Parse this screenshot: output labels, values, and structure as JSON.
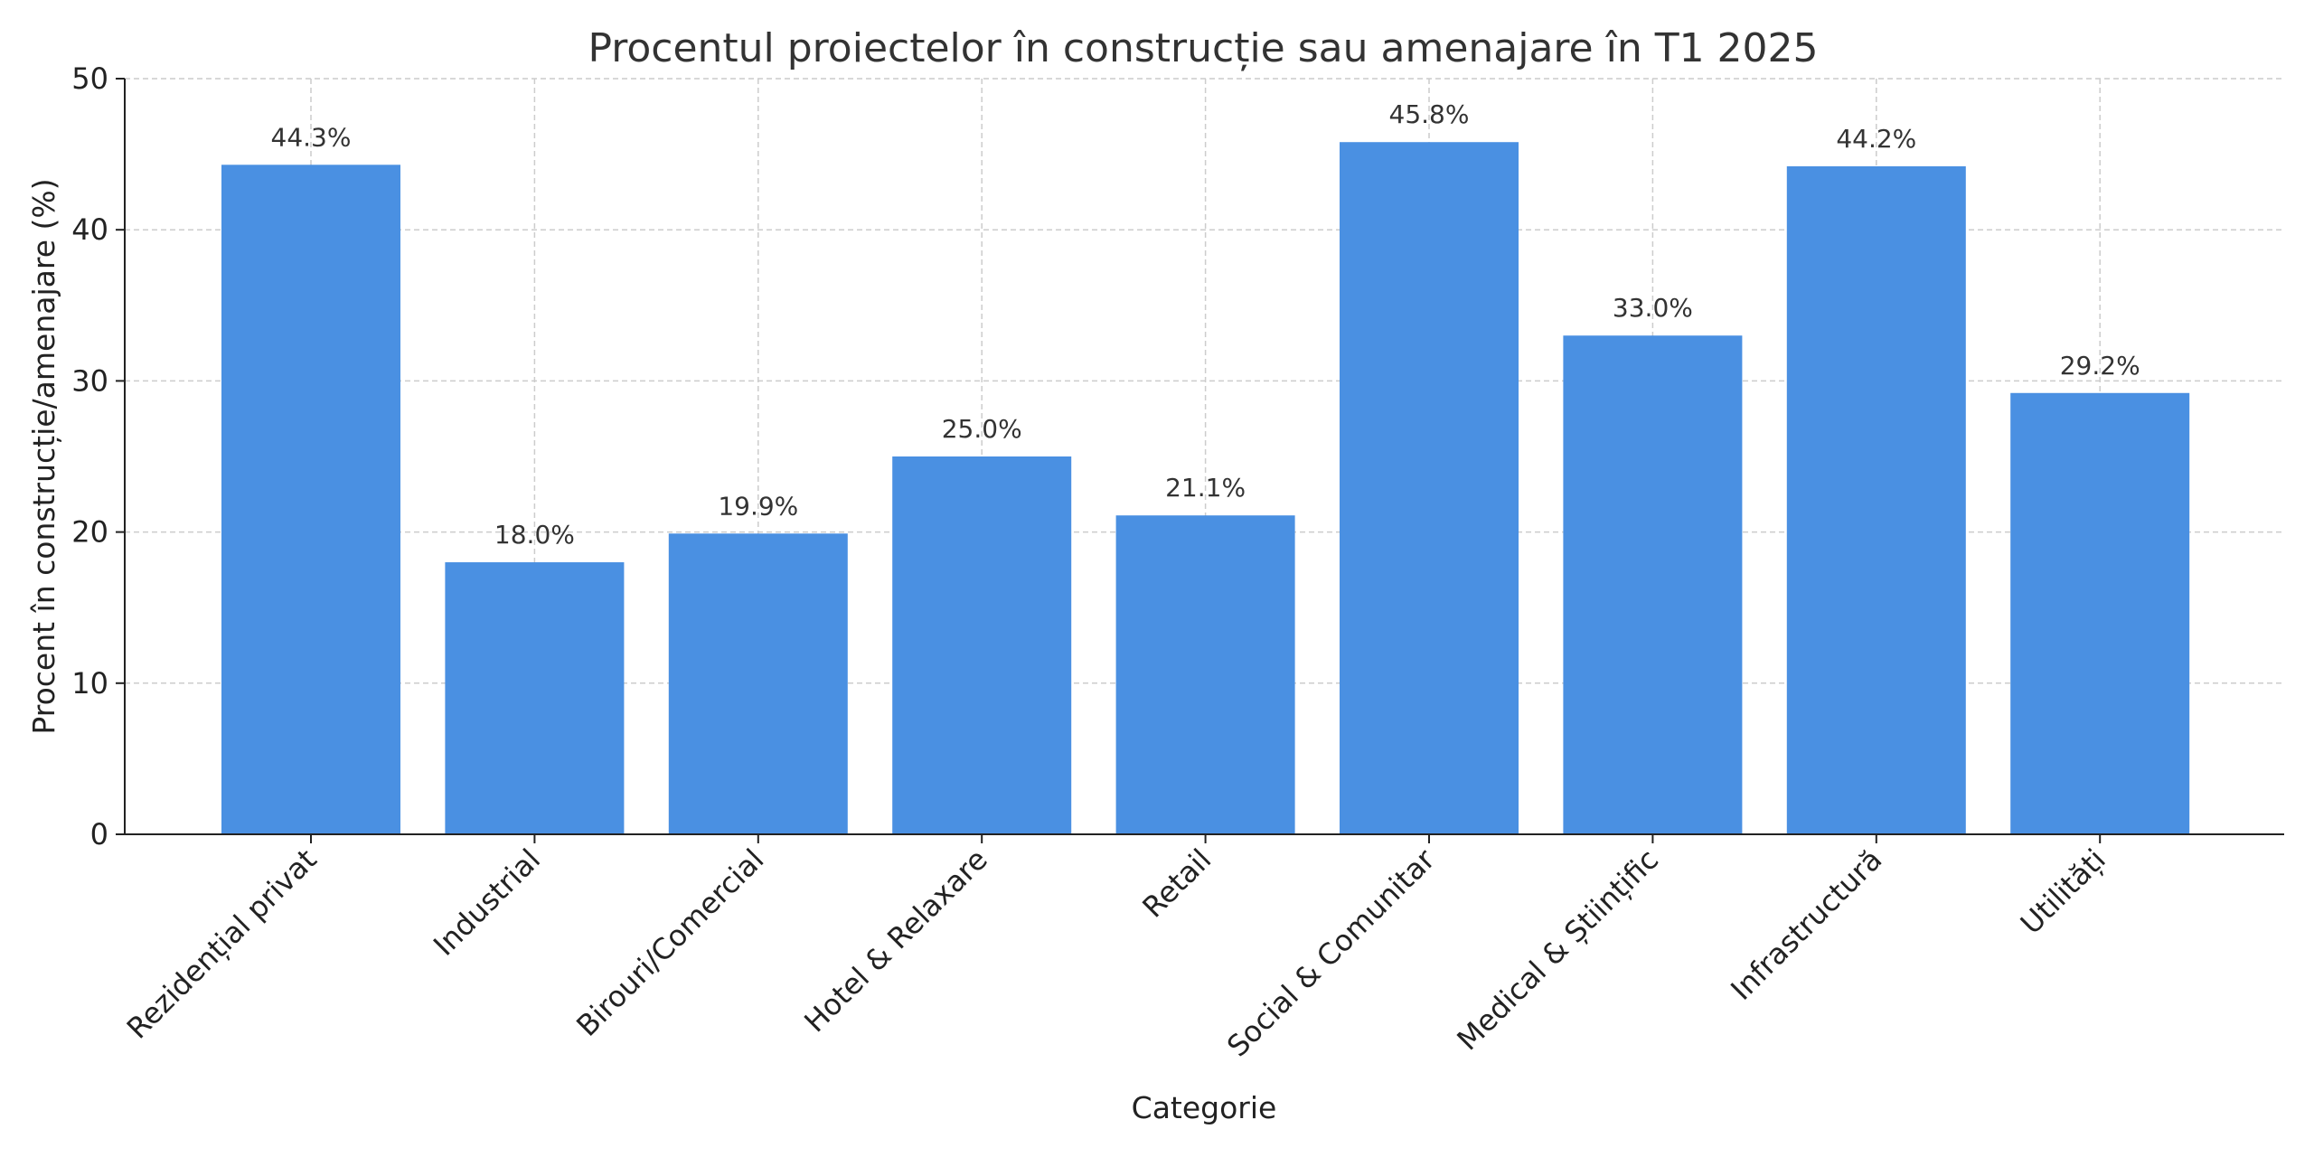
{
  "chart_data": {
    "type": "bar",
    "title": "Procentul proiectelor în construcție sau amenajare în T1 2025",
    "xlabel": "Categorie",
    "ylabel": "Procent în construcție/amenajare (%)",
    "ylim": [
      0,
      50
    ],
    "yticks": [
      0,
      10,
      20,
      30,
      40,
      50
    ],
    "grid": true,
    "bar_color": "#4a90e2",
    "categories": [
      "Rezidențial privat",
      "Industrial",
      "Birouri/Comercial",
      "Hotel & Relaxare",
      "Retail",
      "Social & Comunitar",
      "Medical & Științific",
      "Infrastructură",
      "Utilități"
    ],
    "values": [
      44.3,
      18.0,
      19.9,
      25.0,
      21.1,
      45.8,
      33.0,
      44.2,
      29.2
    ],
    "data_labels": [
      "44.3%",
      "18.0%",
      "19.9%",
      "25.0%",
      "21.1%",
      "45.8%",
      "33.0%",
      "44.2%",
      "29.2%"
    ]
  }
}
